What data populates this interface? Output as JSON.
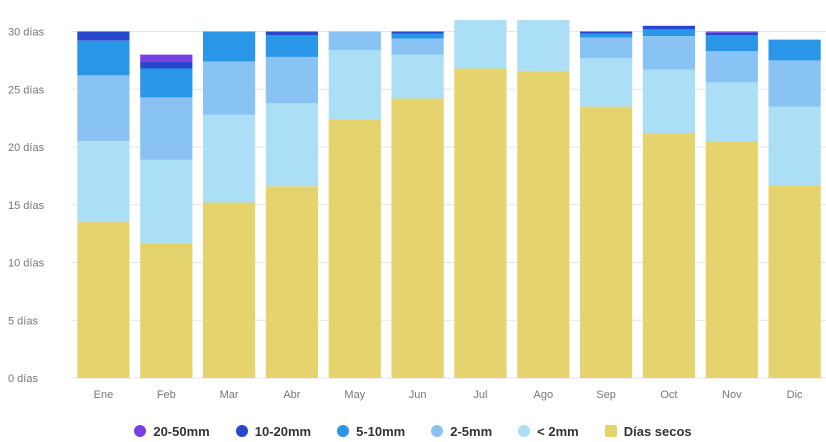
{
  "chart_data": {
    "type": "bar",
    "stacked": true,
    "categories": [
      "Ene",
      "Feb",
      "Mar",
      "Abr",
      "May",
      "Jun",
      "Jul",
      "Ago",
      "Sep",
      "Oct",
      "Nov",
      "Dic"
    ],
    "y_ticks": [
      "0 días",
      "5 días",
      "10 días",
      "15 días",
      "20 días",
      "25 días",
      "30 días"
    ],
    "ylim": [
      0,
      31
    ],
    "grid": true,
    "legend_position": "bottom",
    "series": [
      {
        "name": "Días secos",
        "color": "#e5d36d",
        "values": [
          13.5,
          11.7,
          15.2,
          16.6,
          22.4,
          24.2,
          26.8,
          26.6,
          23.5,
          21.2,
          20.5,
          16.7
        ]
      },
      {
        "name": "< 2mm",
        "color": "#abdff5",
        "values": [
          7.0,
          7.2,
          7.6,
          7.2,
          6.0,
          3.8,
          4.2,
          4.4,
          4.2,
          5.5,
          5.1,
          6.8
        ]
      },
      {
        "name": "2-5mm",
        "color": "#88c3f4",
        "values": [
          5.7,
          5.4,
          4.6,
          4.0,
          1.6,
          1.4,
          0,
          0,
          1.8,
          2.9,
          2.7,
          4.0
        ]
      },
      {
        "name": "5-10mm",
        "color": "#2a96e8",
        "values": [
          3.0,
          2.5,
          2.6,
          1.9,
          0,
          0.4,
          0,
          0,
          0.3,
          0.6,
          1.4,
          1.8
        ]
      },
      {
        "name": "10-20mm",
        "color": "#2747cf",
        "values": [
          0.8,
          0.6,
          0,
          0.3,
          0,
          0.2,
          0,
          0,
          0.2,
          0.3,
          0.2,
          0
        ]
      },
      {
        "name": "20-50mm",
        "color": "#7a3fe2",
        "values": [
          0,
          0.6,
          0,
          0,
          0,
          0,
          0,
          0,
          0,
          0,
          0.1,
          0
        ]
      }
    ],
    "legend_order": [
      "20-50mm",
      "10-20mm",
      "5-10mm",
      "2-5mm",
      "< 2mm",
      "Días secos"
    ]
  }
}
